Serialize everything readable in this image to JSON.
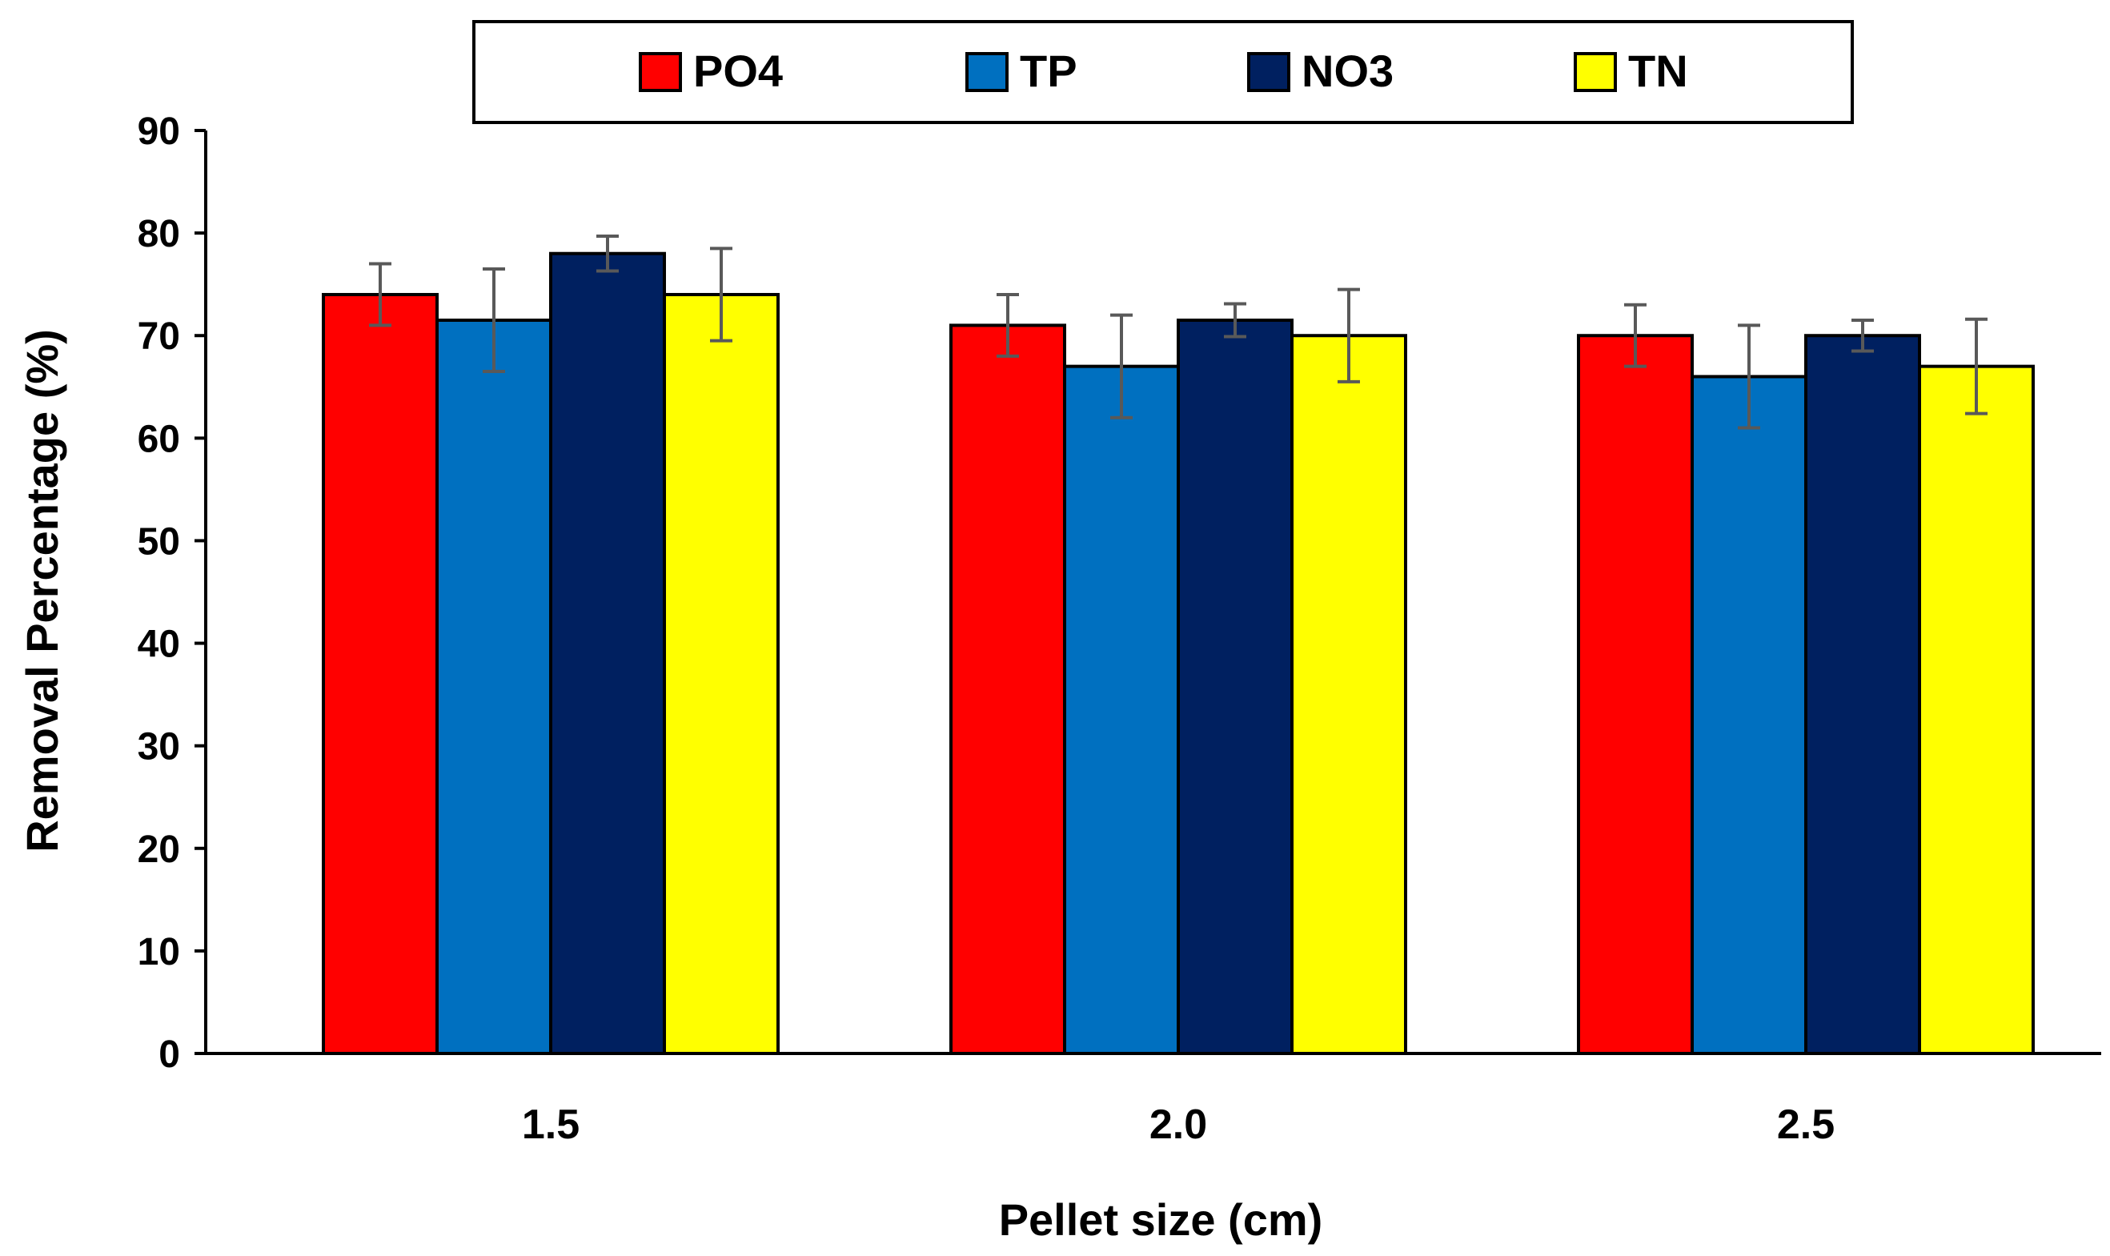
{
  "chart_data": {
    "type": "bar",
    "title": "",
    "xlabel": "Pellet size (cm)",
    "ylabel": "Removal Percentage (%)",
    "ylim": [
      0,
      90
    ],
    "yticks": [
      0,
      10,
      20,
      30,
      40,
      50,
      60,
      70,
      80,
      90
    ],
    "categories": [
      "1.5",
      "2.0",
      "2.5"
    ],
    "legend_position": "top",
    "grid": false,
    "series": [
      {
        "name": "PO4",
        "color": "#FF0000",
        "values": [
          74,
          71,
          70
        ],
        "errors": [
          3,
          3,
          3
        ]
      },
      {
        "name": "TP",
        "color": "#0070C0",
        "values": [
          71.5,
          67,
          66
        ],
        "errors": [
          5,
          5,
          5
        ]
      },
      {
        "name": "NO3",
        "color": "#002060",
        "values": [
          78,
          71.5,
          70
        ],
        "errors": [
          1.7,
          1.6,
          1.5
        ]
      },
      {
        "name": "TN",
        "color": "#FFFF00",
        "values": [
          74,
          70,
          67
        ],
        "errors": [
          4.5,
          4.5,
          4.6
        ]
      }
    ]
  }
}
